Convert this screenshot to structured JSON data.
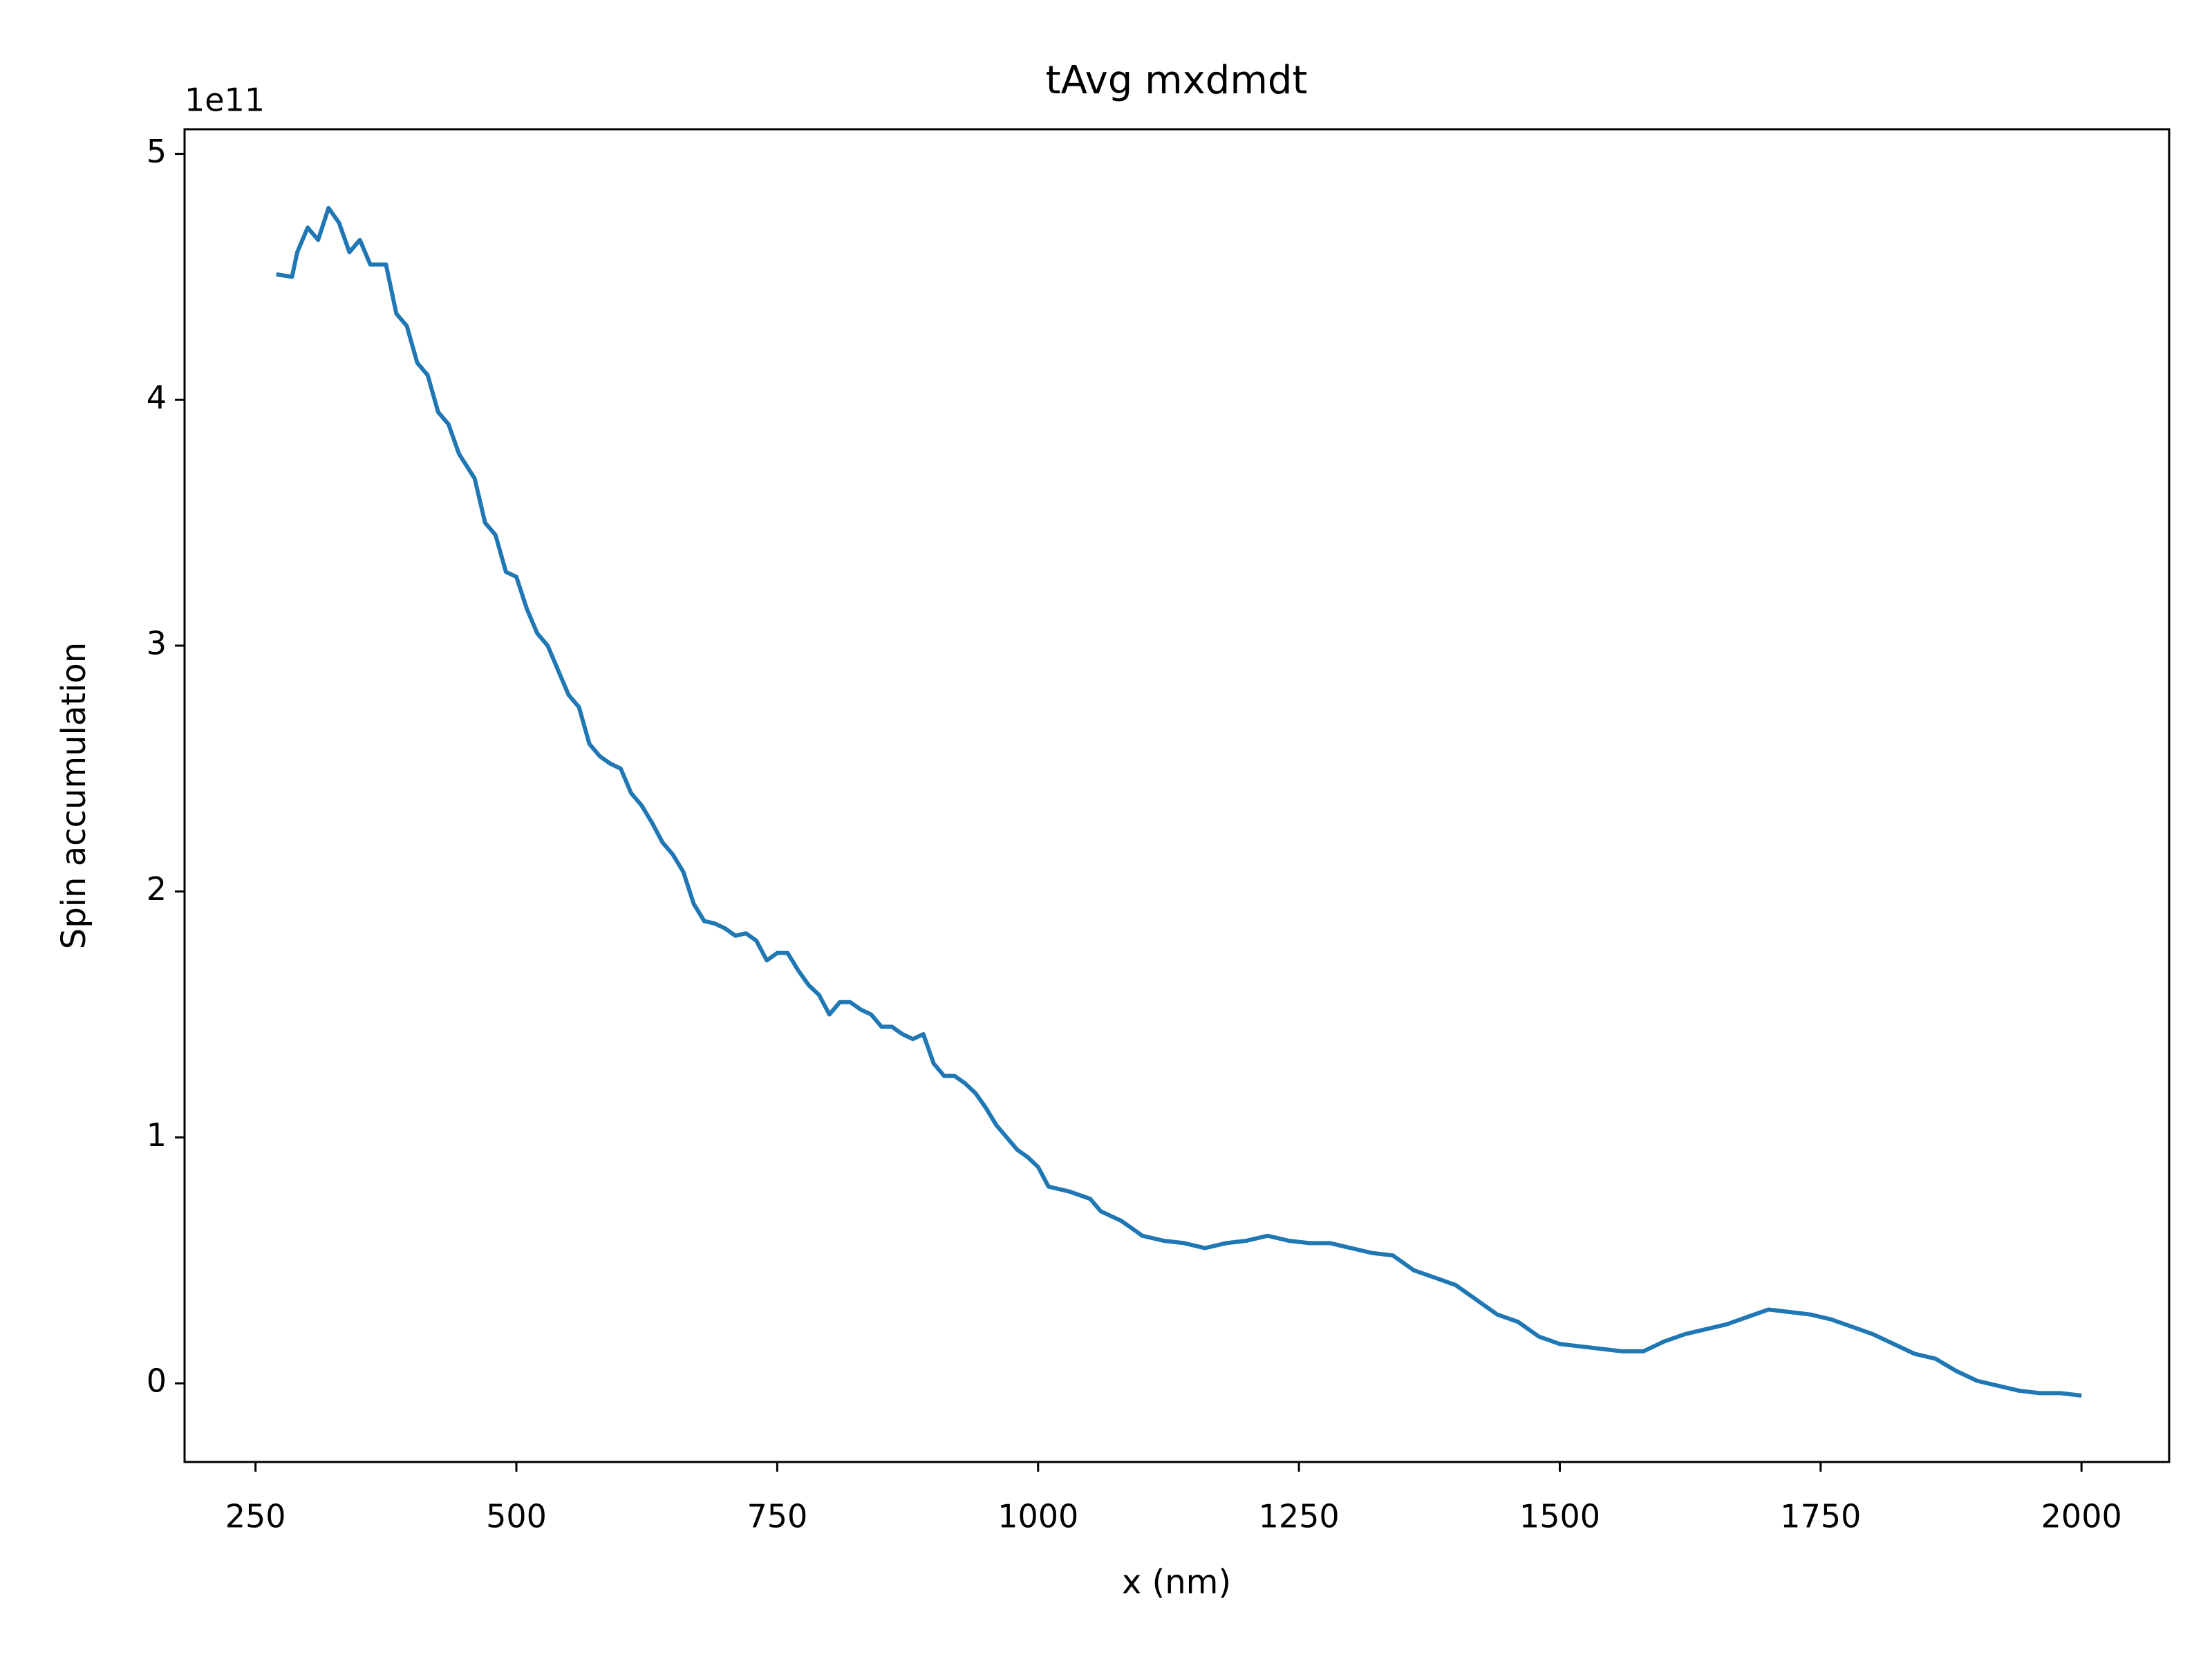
{
  "chart_data": {
    "type": "line",
    "title": "tAvg mxdmdt",
    "x_label": "x (nm)",
    "y_label": "Spin accumulation",
    "y_offset_label": "1e11",
    "x": [
      270,
      285,
      290,
      300,
      310,
      320,
      330,
      340,
      350,
      360,
      375,
      385,
      395,
      405,
      415,
      425,
      435,
      445,
      460,
      470,
      480,
      490,
      500,
      510,
      520,
      530,
      540,
      550,
      560,
      570,
      580,
      590,
      600,
      610,
      620,
      630,
      640,
      650,
      660,
      670,
      680,
      690,
      700,
      710,
      720,
      730,
      740,
      750,
      760,
      770,
      780,
      790,
      800,
      810,
      820,
      830,
      840,
      850,
      860,
      870,
      880,
      890,
      900,
      910,
      920,
      930,
      940,
      950,
      960,
      970,
      980,
      990,
      1000,
      1010,
      1030,
      1050,
      1060,
      1080,
      1100,
      1120,
      1140,
      1160,
      1180,
      1200,
      1220,
      1240,
      1260,
      1280,
      1300,
      1320,
      1340,
      1360,
      1380,
      1400,
      1420,
      1440,
      1460,
      1480,
      1500,
      1520,
      1540,
      1560,
      1580,
      1600,
      1620,
      1640,
      1660,
      1680,
      1700,
      1720,
      1740,
      1760,
      1780,
      1800,
      1820,
      1840,
      1860,
      1880,
      1900,
      1920,
      1940,
      1960,
      1980,
      2000
    ],
    "series": [
      {
        "name": "tAvg mxdmdt",
        "color": "#1f77b4",
        "values": [
          4.51,
          4.5,
          4.6,
          4.7,
          4.65,
          4.78,
          4.72,
          4.6,
          4.65,
          4.55,
          4.55,
          4.35,
          4.3,
          4.15,
          4.1,
          3.95,
          3.9,
          3.78,
          3.68,
          3.5,
          3.45,
          3.3,
          3.28,
          3.15,
          3.05,
          3.0,
          2.9,
          2.8,
          2.75,
          2.6,
          2.55,
          2.52,
          2.5,
          2.4,
          2.35,
          2.28,
          2.2,
          2.15,
          2.08,
          1.95,
          1.88,
          1.87,
          1.85,
          1.82,
          1.83,
          1.8,
          1.72,
          1.75,
          1.75,
          1.68,
          1.62,
          1.58,
          1.5,
          1.55,
          1.55,
          1.52,
          1.5,
          1.45,
          1.45,
          1.42,
          1.4,
          1.42,
          1.3,
          1.25,
          1.25,
          1.22,
          1.18,
          1.12,
          1.05,
          1.0,
          0.95,
          0.92,
          0.88,
          0.8,
          0.78,
          0.75,
          0.7,
          0.66,
          0.6,
          0.58,
          0.57,
          0.55,
          0.57,
          0.58,
          0.6,
          0.58,
          0.57,
          0.57,
          0.55,
          0.53,
          0.52,
          0.46,
          0.43,
          0.4,
          0.34,
          0.28,
          0.25,
          0.19,
          0.16,
          0.15,
          0.14,
          0.13,
          0.13,
          0.17,
          0.2,
          0.22,
          0.24,
          0.27,
          0.3,
          0.29,
          0.28,
          0.26,
          0.23,
          0.2,
          0.16,
          0.12,
          0.1,
          0.05,
          0.01,
          -0.01,
          -0.03,
          -0.04,
          -0.04,
          -0.05
        ]
      }
    ],
    "xlim": [
      182,
      2084
    ],
    "ylim": [
      -0.32,
      5.1
    ],
    "xticks": [
      250,
      500,
      750,
      1000,
      1250,
      1500,
      1750,
      2000
    ],
    "yticks": [
      0,
      1,
      2,
      3,
      4,
      5
    ],
    "grid": false
  }
}
